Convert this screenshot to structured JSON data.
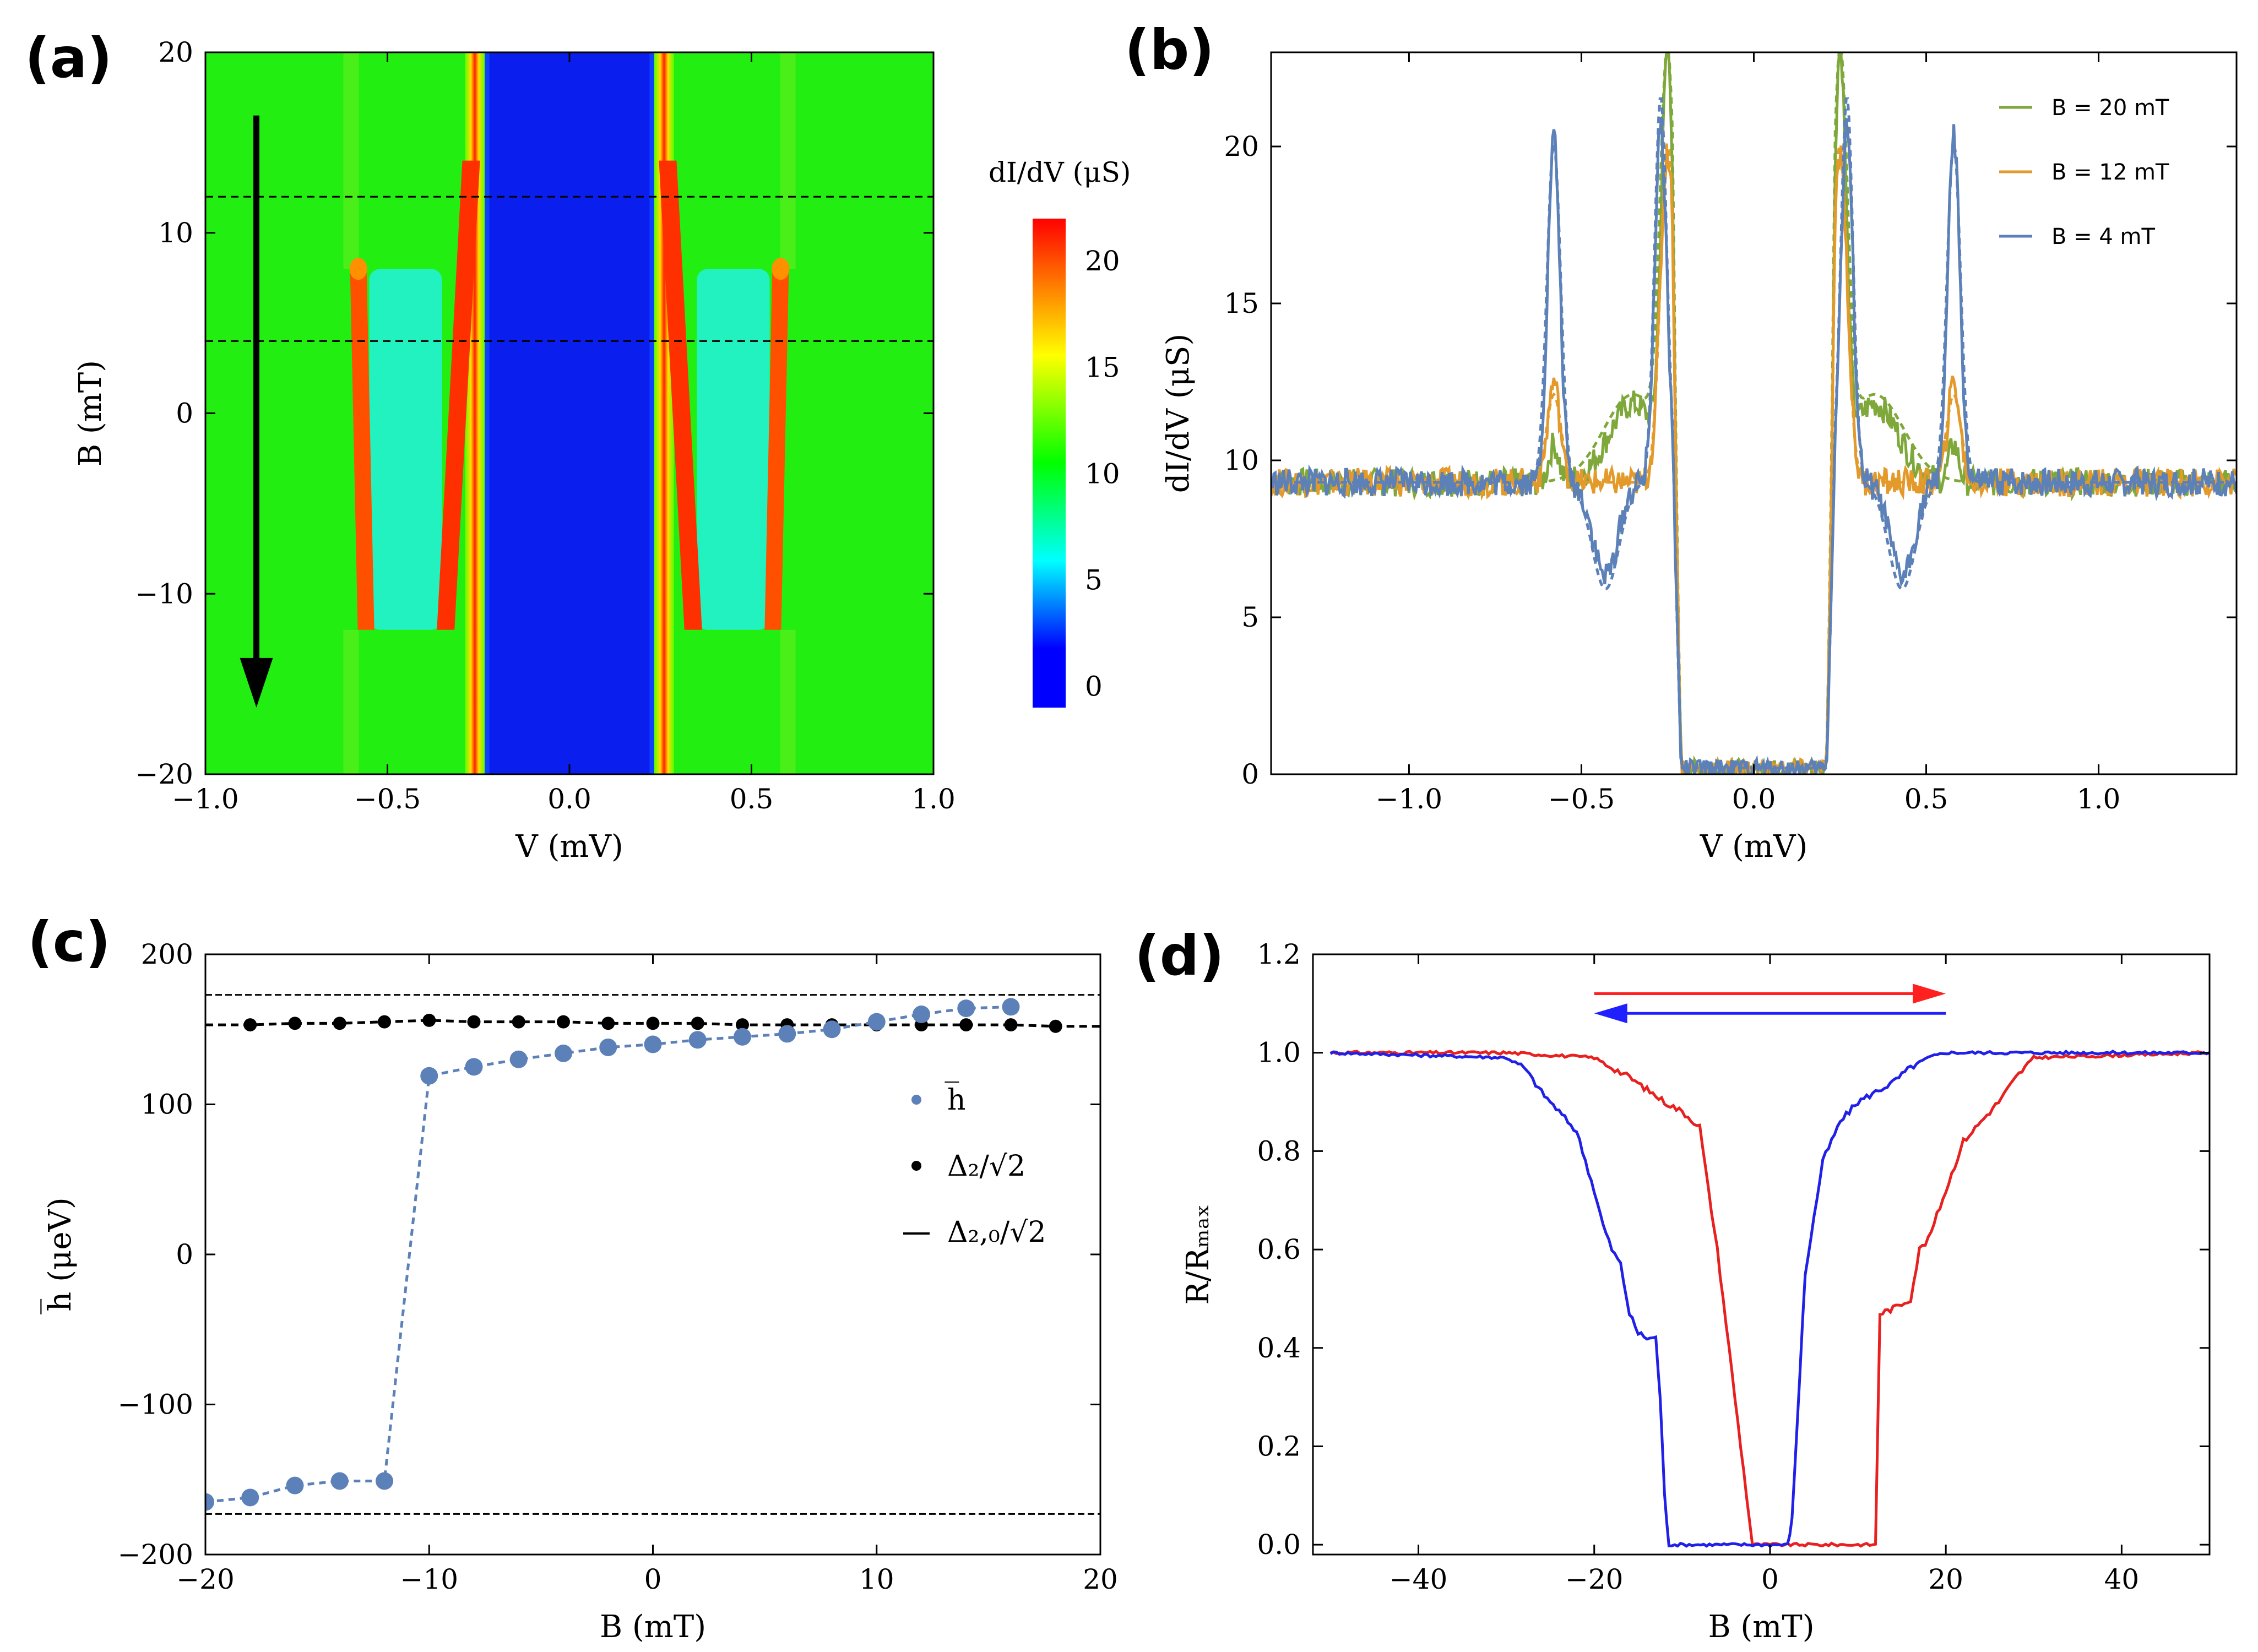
{
  "figure_labels": {
    "a": "(a)",
    "b": "(b)",
    "c": "(c)",
    "d": "(d)"
  },
  "chart_data": [
    {
      "id": "a",
      "type": "heatmap",
      "xlabel": "V (mV)",
      "ylabel": "B (mT)",
      "xlim": [
        -1.0,
        1.0
      ],
      "ylim": [
        -20,
        20
      ],
      "xticks": [
        -1.0,
        -0.5,
        0.0,
        0.5,
        1.0
      ],
      "xtick_labels": [
        "−1.0",
        "−0.5",
        "0.0",
        "0.5",
        "1.0"
      ],
      "yticks": [
        -20,
        -10,
        0,
        10,
        20
      ],
      "ytick_labels": [
        "−20",
        "−10",
        "0",
        "10",
        "20"
      ],
      "colorbar": {
        "title": "dI/dV (μS)",
        "range": [
          -1,
          22
        ],
        "ticks": [
          0,
          5,
          10,
          15,
          20
        ],
        "colors": [
          "#0000ff",
          "#00ffff",
          "#00ff00",
          "#ffff00",
          "#ff0000"
        ]
      },
      "background_value": 10,
      "gap_region": {
        "v": [
          -0.22,
          0.22
        ],
        "value": 0
      },
      "ridges": [
        {
          "b": [
            20,
            -20
          ],
          "v": [
            -0.26,
            -0.26
          ],
          "peak": 21
        },
        {
          "b": [
            20,
            -20
          ],
          "v": [
            0.26,
            0.26
          ],
          "peak": 21
        }
      ],
      "switching_field": -12,
      "outer_peaks": {
        "b_range": [
          -12,
          8
        ],
        "v": [
          -0.58,
          0.58
        ],
        "peak": 20
      },
      "inner_peaks": {
        "b_range": [
          -12,
          8
        ],
        "v_at_top": [
          -0.27,
          0.27
        ],
        "v_at_bottom": [
          -0.34,
          0.34
        ],
        "peak": 21
      },
      "cyan_regions": {
        "b_range": [
          -12,
          8
        ],
        "v": [
          [
            -0.55,
            -0.35
          ],
          [
            0.35,
            0.55
          ]
        ],
        "value": 6
      },
      "dashed_lines_b": [
        20,
        12,
        4
      ],
      "arrow": {
        "v": -0.86,
        "b_from": 16.5,
        "b_to": -16
      }
    },
    {
      "id": "b",
      "type": "line",
      "xlabel": "V (mV)",
      "ylabel": "dI/dV (μS)",
      "xlim": [
        -1.4,
        1.4
      ],
      "ylim": [
        0,
        23
      ],
      "xticks": [
        -1.0,
        -0.5,
        0.0,
        0.5,
        1.0
      ],
      "xtick_labels": [
        "−1.0",
        "−0.5",
        "0.0",
        "0.5",
        "1.0"
      ],
      "yticks": [
        0,
        5,
        10,
        15,
        20
      ],
      "ytick_labels": [
        "0",
        "5",
        "10",
        "15",
        "20"
      ],
      "legend_position": "top-right",
      "series": [
        {
          "name": "B = 20 mT",
          "color": "#7ea83a",
          "baseline": 9.3,
          "gap_edge": 0.21,
          "peaks": [
            {
              "v": 0.25,
              "amp": 13.0,
              "w": 0.025
            },
            {
              "v": 0.35,
              "amp": 2.5,
              "w": 0.1
            },
            {
              "v": 0.58,
              "amp": 1.2,
              "w": 0.02
            }
          ],
          "fit_peaks": [
            {
              "v": 0.25,
              "amp": 12.5,
              "w": 0.03
            },
            {
              "v": 0.35,
              "amp": 2.8,
              "w": 0.12
            }
          ]
        },
        {
          "name": "B = 12 mT",
          "color": "#e39a2b",
          "baseline": 9.3,
          "gap_edge": 0.21,
          "peaks": [
            {
              "v": 0.25,
              "amp": 10.5,
              "w": 0.03
            },
            {
              "v": 0.58,
              "amp": 3.2,
              "w": 0.025
            }
          ],
          "fit_peaks": [
            {
              "v": 0.25,
              "amp": 10.8,
              "w": 0.03
            },
            {
              "v": 0.58,
              "amp": 2.8,
              "w": 0.03
            }
          ]
        },
        {
          "name": "B = 4 mT",
          "color": "#5c80b8",
          "baseline": 9.3,
          "gap_edge": 0.21,
          "peaks": [
            {
              "v": 0.27,
              "amp": 11.3,
              "w": 0.025
            },
            {
              "v": 0.58,
              "amp": 11.0,
              "w": 0.025
            },
            {
              "v": 0.43,
              "amp": -3.0,
              "w": 0.05
            }
          ],
          "fit_peaks": [
            {
              "v": 0.27,
              "amp": 12.3,
              "w": 0.025
            },
            {
              "v": 0.58,
              "amp": 10.8,
              "w": 0.028
            },
            {
              "v": 0.43,
              "amp": -3.4,
              "w": 0.055
            }
          ]
        }
      ]
    },
    {
      "id": "c",
      "type": "scatter",
      "xlabel": "B (mT)",
      "ylabel": "h̅ (μeV)",
      "xlim": [
        -20,
        20
      ],
      "ylim": [
        -200,
        200
      ],
      "xticks": [
        -20,
        -10,
        0,
        10,
        20
      ],
      "xtick_labels": [
        "−20",
        "−10",
        "0",
        "10",
        "20"
      ],
      "yticks": [
        -200,
        -100,
        0,
        100,
        200
      ],
      "ytick_labels": [
        "−200",
        "−100",
        "0",
        "100",
        "200"
      ],
      "legend_position": "right",
      "series": [
        {
          "name": "h̅",
          "color": "#5c80b8",
          "x": [
            -20,
            -18,
            -16,
            -14,
            -12,
            -10,
            -8,
            -6,
            -4,
            -2,
            0,
            2,
            4,
            6,
            8,
            10,
            12,
            14,
            16
          ],
          "y": [
            -165,
            -162,
            -154,
            -151,
            -151,
            119,
            125,
            130,
            134,
            138,
            140,
            143,
            145,
            147,
            150,
            155,
            160,
            164,
            165
          ]
        },
        {
          "name": "Δ₂/√2",
          "color": "#000000",
          "x": [
            -18,
            -16,
            -14,
            -12,
            -10,
            -8,
            -6,
            -4,
            -2,
            0,
            2,
            4,
            6,
            8,
            10,
            12,
            14,
            16,
            18
          ],
          "y": [
            153,
            154,
            154,
            155,
            156,
            155,
            155,
            155,
            154,
            154,
            154,
            153,
            153,
            153,
            153,
            153,
            153,
            153,
            152
          ]
        },
        {
          "name": "Δ₂,₀/√2",
          "color": "#000000",
          "y": [
            173,
            -173
          ]
        }
      ]
    },
    {
      "id": "d",
      "type": "line",
      "xlabel": "B (mT)",
      "ylabel": "R/Rₘₐₓ",
      "xlim": [
        -52,
        50
      ],
      "ylim": [
        -0.02,
        1.2
      ],
      "xticks": [
        -40,
        -20,
        0,
        20,
        40
      ],
      "xtick_labels": [
        "−40",
        "−20",
        "0",
        "20",
        "40"
      ],
      "yticks": [
        0.0,
        0.2,
        0.4,
        0.6,
        0.8,
        1.0,
        1.2
      ],
      "ytick_labels": [
        "0.0",
        "0.2",
        "0.4",
        "0.6",
        "0.8",
        "1.0",
        "1.2"
      ],
      "arrows": [
        {
          "color": "#ff2020",
          "from": -20,
          "to": 20,
          "y": 1.12
        },
        {
          "color": "#2020ff",
          "from": 20,
          "to": -20,
          "y": 1.08
        }
      ],
      "series": [
        {
          "color": "#e82020",
          "x": [
            -50,
            -30,
            -20,
            -16,
            -12,
            -10,
            -8,
            -7,
            -6,
            -5,
            -4,
            -3,
            -2,
            12,
            12.5,
            14,
            16,
            17,
            18,
            20,
            22,
            24,
            26,
            28,
            30,
            50
          ],
          "y": [
            1.0,
            1.0,
            0.99,
            0.95,
            0.9,
            0.88,
            0.85,
            0.72,
            0.6,
            0.45,
            0.3,
            0.15,
            0.0,
            0.0,
            0.47,
            0.48,
            0.5,
            0.6,
            0.62,
            0.72,
            0.82,
            0.86,
            0.9,
            0.95,
            0.99,
            1.0
          ]
        },
        {
          "color": "#2020e8",
          "x": [
            -50,
            -30,
            -28,
            -26,
            -24,
            -22,
            -20,
            -19,
            -18,
            -17,
            -16,
            -15,
            -14,
            -13,
            -12.5,
            -12,
            -11.5,
            2,
            2.5,
            4,
            6,
            8,
            10,
            12,
            14,
            16,
            18,
            20,
            50
          ],
          "y": [
            1.0,
            0.99,
            0.97,
            0.92,
            0.88,
            0.84,
            0.72,
            0.65,
            0.6,
            0.57,
            0.47,
            0.43,
            0.42,
            0.42,
            0.3,
            0.1,
            0.0,
            0.0,
            0.05,
            0.55,
            0.78,
            0.86,
            0.9,
            0.92,
            0.94,
            0.97,
            0.99,
            1.0,
            1.0
          ]
        }
      ]
    }
  ]
}
